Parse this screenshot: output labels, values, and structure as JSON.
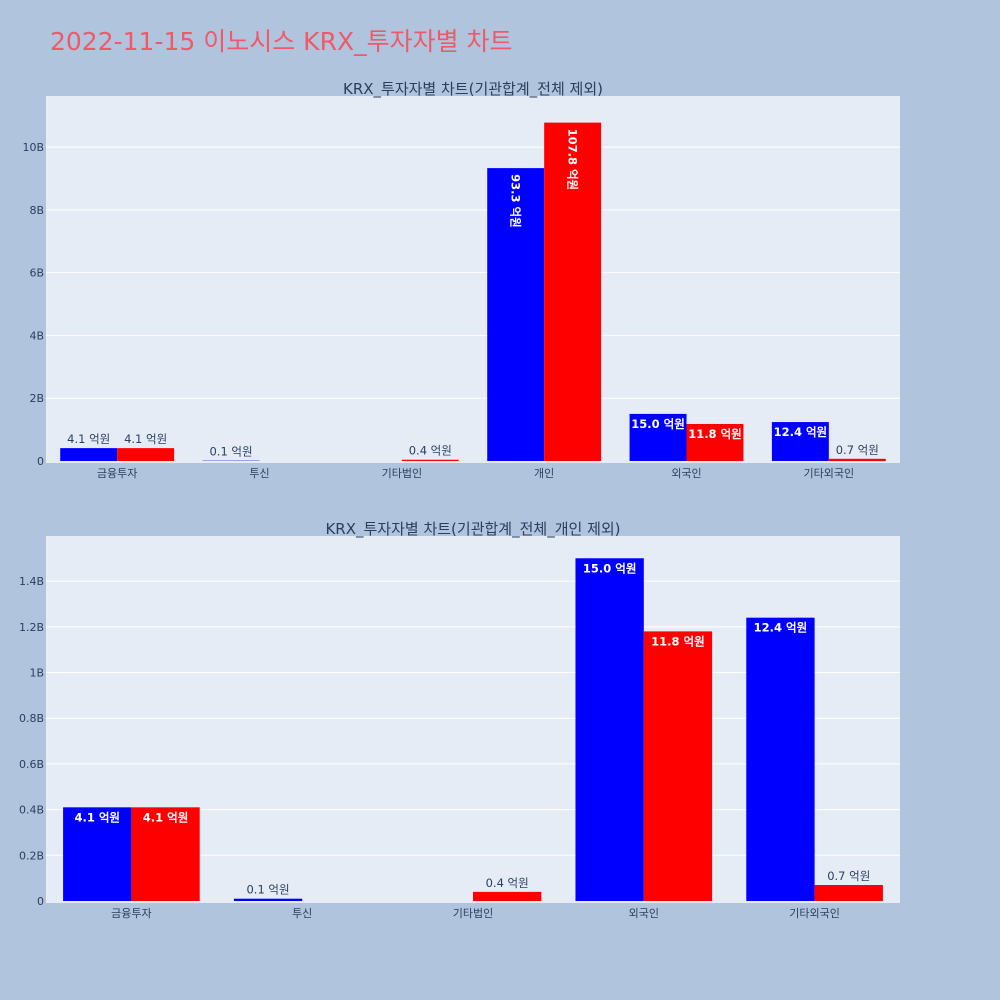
{
  "title": "2022-11-15 이노시스 KRX_투자자별 차트",
  "colors": {
    "background": "#b0c4de",
    "plot_bg": "#e5ecf6",
    "title": "#ef5a6a",
    "series_blue": "#0000ff",
    "series_red": "#ff0000"
  },
  "chart_data": [
    {
      "type": "bar",
      "title": "KRX_투자자별 차트(기관합계_전체 제외)",
      "categories": [
        "금융투자",
        "투신",
        "기타법인",
        "개인",
        "외국인",
        "기타외국인"
      ],
      "ylim": [
        0,
        11.5
      ],
      "yticks": [
        0,
        2,
        4,
        6,
        8,
        10
      ],
      "ytick_labels": [
        "0",
        "2B",
        "4B",
        "6B",
        "8B",
        "10B"
      ],
      "grid": true,
      "series": [
        {
          "color": "#0000ff",
          "values": [
            0.41,
            0.01,
            0,
            9.33,
            1.5,
            1.24
          ],
          "labels": [
            "4.1 억원",
            "0.1 억원",
            "",
            "93.3 억원",
            "15.0 억원",
            "12.4 억원"
          ]
        },
        {
          "color": "#ff0000",
          "values": [
            0.41,
            0,
            0.04,
            10.78,
            1.18,
            0.07
          ],
          "labels": [
            "4.1 억원",
            "",
            "0.4 억원",
            "107.8 억원",
            "11.8 억원",
            "0.7 억원"
          ]
        }
      ]
    },
    {
      "type": "bar",
      "title": "KRX_투자자별 차트(기관합계_전체_개인 제외)",
      "categories": [
        "금융투자",
        "투신",
        "기타법인",
        "외국인",
        "기타외국인"
      ],
      "ylim": [
        0,
        1.58
      ],
      "yticks": [
        0,
        0.2,
        0.4,
        0.6,
        0.8,
        1.0,
        1.2,
        1.4
      ],
      "ytick_labels": [
        "0",
        "0.2B",
        "0.4B",
        "0.6B",
        "0.8B",
        "1B",
        "1.2B",
        "1.4B"
      ],
      "grid": true,
      "series": [
        {
          "color": "#0000ff",
          "values": [
            0.41,
            0.01,
            0,
            1.5,
            1.24
          ],
          "labels": [
            "4.1 억원",
            "0.1 억원",
            "",
            "15.0 억원",
            "12.4 억원"
          ]
        },
        {
          "color": "#ff0000",
          "values": [
            0.41,
            0,
            0.04,
            1.18,
            0.07
          ],
          "labels": [
            "4.1 억원",
            "",
            "0.4 억원",
            "11.8 억원",
            "0.7 억원"
          ]
        }
      ]
    }
  ]
}
